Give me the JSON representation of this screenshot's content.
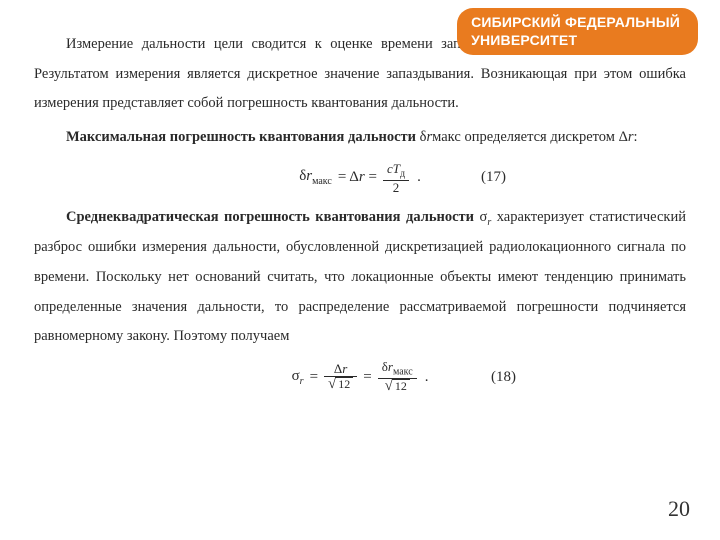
{
  "badge": {
    "line1": "СИБИРСКИЙ ФЕДЕРАЛЬНЫЙ",
    "line2": "УНИВЕРСИТЕТ",
    "bg": "#e97b1f",
    "fg": "#ffffff"
  },
  "para1": "Измерение дальности цели сводится к оценке времени запаздывания (аналоговой величины). Результатом измерения является дискретное значение запаздывания. Возникающая при этом ошибка измерения представляет собой погрешность квантования дальности.",
  "para2": {
    "lead_bold": "Максимальная погрешность квантования дальности",
    "mid": " δ",
    "var_r": "r",
    "sub_maks": "макс",
    "tail": " определяется дискретом Δ",
    "tail2": ":"
  },
  "formula1": {
    "lhs_delta": "δ",
    "lhs_r": "r",
    "lhs_sub": "макс",
    "eq": " = Δ",
    "eq_r": "r",
    "eq2": " = ",
    "num_c": "c",
    "num_T": "T",
    "num_Tsub": "д",
    "den": "2",
    "eqnum": "(17)",
    "eqnum_right": "180px"
  },
  "para3": {
    "lead_bold": "Среднеквадратическая погрешность квантования дальности",
    "sigma": " σ",
    "var_r": "r",
    "body": " характеризует статистический разброс ошибки измерения дальности, обусловленной дискретизацией радиолокационного сигнала по времени. Поскольку нет оснований считать, что локационные объекты имеют тенденцию принимать определенные значения дальности, то распределение рассматриваемой погрешности подчиняется равномерному закону. Поэтому получаем"
  },
  "formula2": {
    "lhs_sigma": "σ",
    "lhs_r": "r",
    "eq": " = ",
    "num1_delta": "Δ",
    "num1_r": "r",
    "den12": "12",
    "eq2": " = ",
    "num2_delta": "δ",
    "num2_r": "r",
    "num2_sub": "макс",
    "eqnum": "(18)",
    "eqnum_right": "170px"
  },
  "pagenum": "20",
  "style": {
    "font_body_pt": 14.5,
    "line_height": 2.05,
    "text_color": "#2a2a2a",
    "bg_color": "#ffffff"
  }
}
